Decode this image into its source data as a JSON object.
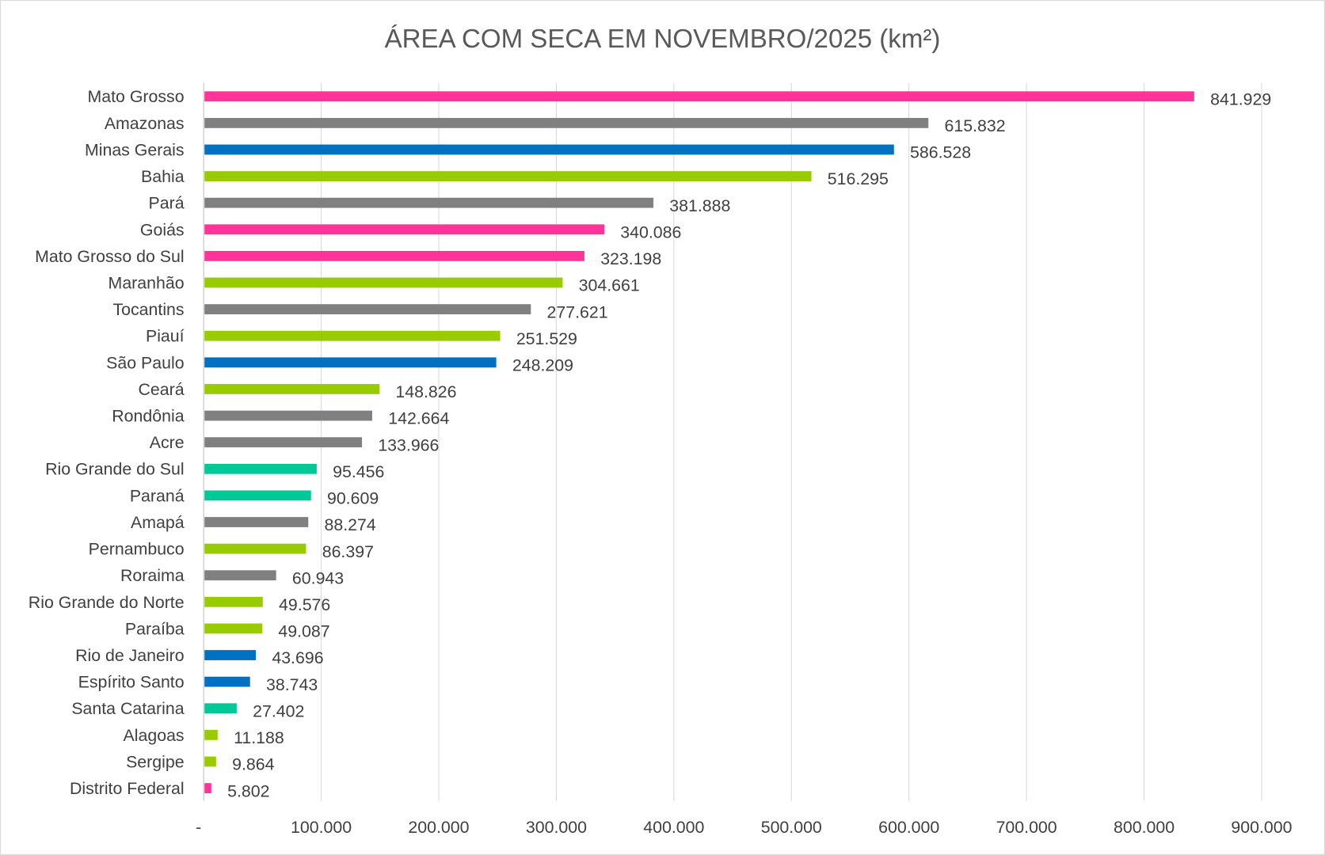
{
  "chart_data": {
    "type": "bar",
    "orientation": "horizontal",
    "title": "ÁREA COM SECA EM NOVEMBRO/2025 (km²)",
    "xlabel": "",
    "ylabel": "",
    "xlim": [
      0,
      900000
    ],
    "grid": true,
    "legend": "none",
    "x_ticks": [
      "-",
      "100.000",
      "200.000",
      "300.000",
      "400.000",
      "500.000",
      "600.000",
      "700.000",
      "800.000",
      "900.000"
    ],
    "categories": [
      "Mato Grosso",
      "Amazonas",
      "Minas Gerais",
      "Bahia",
      "Pará",
      "Goiás",
      "Mato Grosso do Sul",
      "Maranhão",
      "Tocantins",
      "Piauí",
      "São Paulo",
      "Ceará",
      "Rondônia",
      "Acre",
      "Rio Grande do Sul",
      "Paraná",
      "Amapá",
      "Pernambuco",
      "Roraima",
      "Rio Grande do Norte",
      "Paraíba",
      "Rio de Janeiro",
      "Espírito Santo",
      "Santa Catarina",
      "Alagoas",
      "Sergipe",
      "Distrito Federal"
    ],
    "values": [
      841929,
      615832,
      586528,
      516295,
      381888,
      340086,
      323198,
      304661,
      277621,
      251529,
      248209,
      148826,
      142664,
      133966,
      95456,
      90609,
      88274,
      86397,
      60943,
      49576,
      49087,
      43696,
      38743,
      27402,
      11188,
      9864,
      5802
    ],
    "data_labels": [
      "841.929",
      "615.832",
      "586.528",
      "516.295",
      "381.888",
      "340.086",
      "323.198",
      "304.661",
      "277.621",
      "251.529",
      "248.209",
      "148.826",
      "142.664",
      "133.966",
      "95.456",
      "90.609",
      "88.274",
      "86.397",
      "60.943",
      "49.576",
      "49.087",
      "43.696",
      "38.743",
      "27.402",
      "11.188",
      "9.864",
      "5.802"
    ],
    "region_colors": [
      "#FF3399",
      "#808080",
      "#0070C0",
      "#99CC00",
      "#808080",
      "#FF3399",
      "#FF3399",
      "#99CC00",
      "#808080",
      "#99CC00",
      "#0070C0",
      "#99CC00",
      "#808080",
      "#808080",
      "#00C896",
      "#00C896",
      "#808080",
      "#99CC00",
      "#808080",
      "#99CC00",
      "#99CC00",
      "#0070C0",
      "#0070C0",
      "#00C896",
      "#99CC00",
      "#99CC00",
      "#FF3399"
    ],
    "colors": {
      "centro_oeste": "#FF3399",
      "norte": "#808080",
      "sudeste": "#0070C0",
      "nordeste": "#99CC00",
      "sul": "#00C896"
    }
  }
}
